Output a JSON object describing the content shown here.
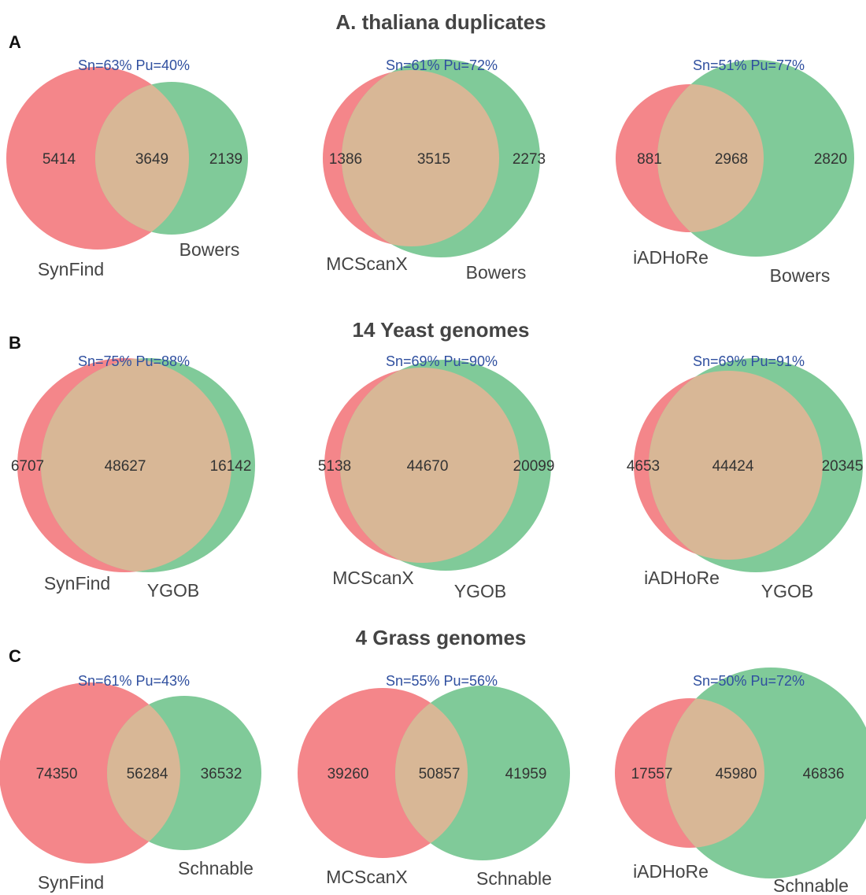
{
  "chart_data": {
    "type": "venn",
    "colors": {
      "left": "#f4868a",
      "right": "#80ca99",
      "overlap": "#d8b796"
    },
    "rows": [
      {
        "panel": "A",
        "title": "A. thaliana duplicates",
        "diagrams": [
          {
            "metrics": "Sn=63% Pu=40%",
            "left_label": "SynFind",
            "right_label": "Bowers",
            "left_only": "5414",
            "both": "3649",
            "right_only": "2139"
          },
          {
            "metrics": "Sn=61% Pu=72%",
            "left_label": "MCScanX",
            "right_label": "Bowers",
            "left_only": "1386",
            "both": "3515",
            "right_only": "2273"
          },
          {
            "metrics": "Sn=51% Pu=77%",
            "left_label": "iADHoRe",
            "right_label": "Bowers",
            "left_only": "881",
            "both": "2968",
            "right_only": "2820"
          }
        ]
      },
      {
        "panel": "B",
        "title": "14 Yeast genomes",
        "diagrams": [
          {
            "metrics": "Sn=75% Pu=88%",
            "left_label": "SynFind",
            "right_label": "YGOB",
            "left_only": "6707",
            "both": "48627",
            "right_only": "16142"
          },
          {
            "metrics": "Sn=69% Pu=90%",
            "left_label": "MCScanX",
            "right_label": "YGOB",
            "left_only": "5138",
            "both": "44670",
            "right_only": "20099"
          },
          {
            "metrics": "Sn=69% Pu=91%",
            "left_label": "iADHoRe",
            "right_label": "YGOB",
            "left_only": "4653",
            "both": "44424",
            "right_only": "20345"
          }
        ]
      },
      {
        "panel": "C",
        "title": "4 Grass genomes",
        "diagrams": [
          {
            "metrics": "Sn=61% Pu=43%",
            "left_label": "SynFind",
            "right_label": "Schnable",
            "left_only": "74350",
            "both": "56284",
            "right_only": "36532"
          },
          {
            "metrics": "Sn=55% Pu=56%",
            "left_label": "MCScanX",
            "right_label": "Schnable",
            "left_only": "39260",
            "both": "50857",
            "right_only": "41959"
          },
          {
            "metrics": "Sn=50% Pu=72%",
            "left_label": "iADHoRe",
            "right_label": "Schnable",
            "left_only": "17557",
            "both": "45980",
            "right_only": "46836"
          }
        ]
      }
    ]
  }
}
